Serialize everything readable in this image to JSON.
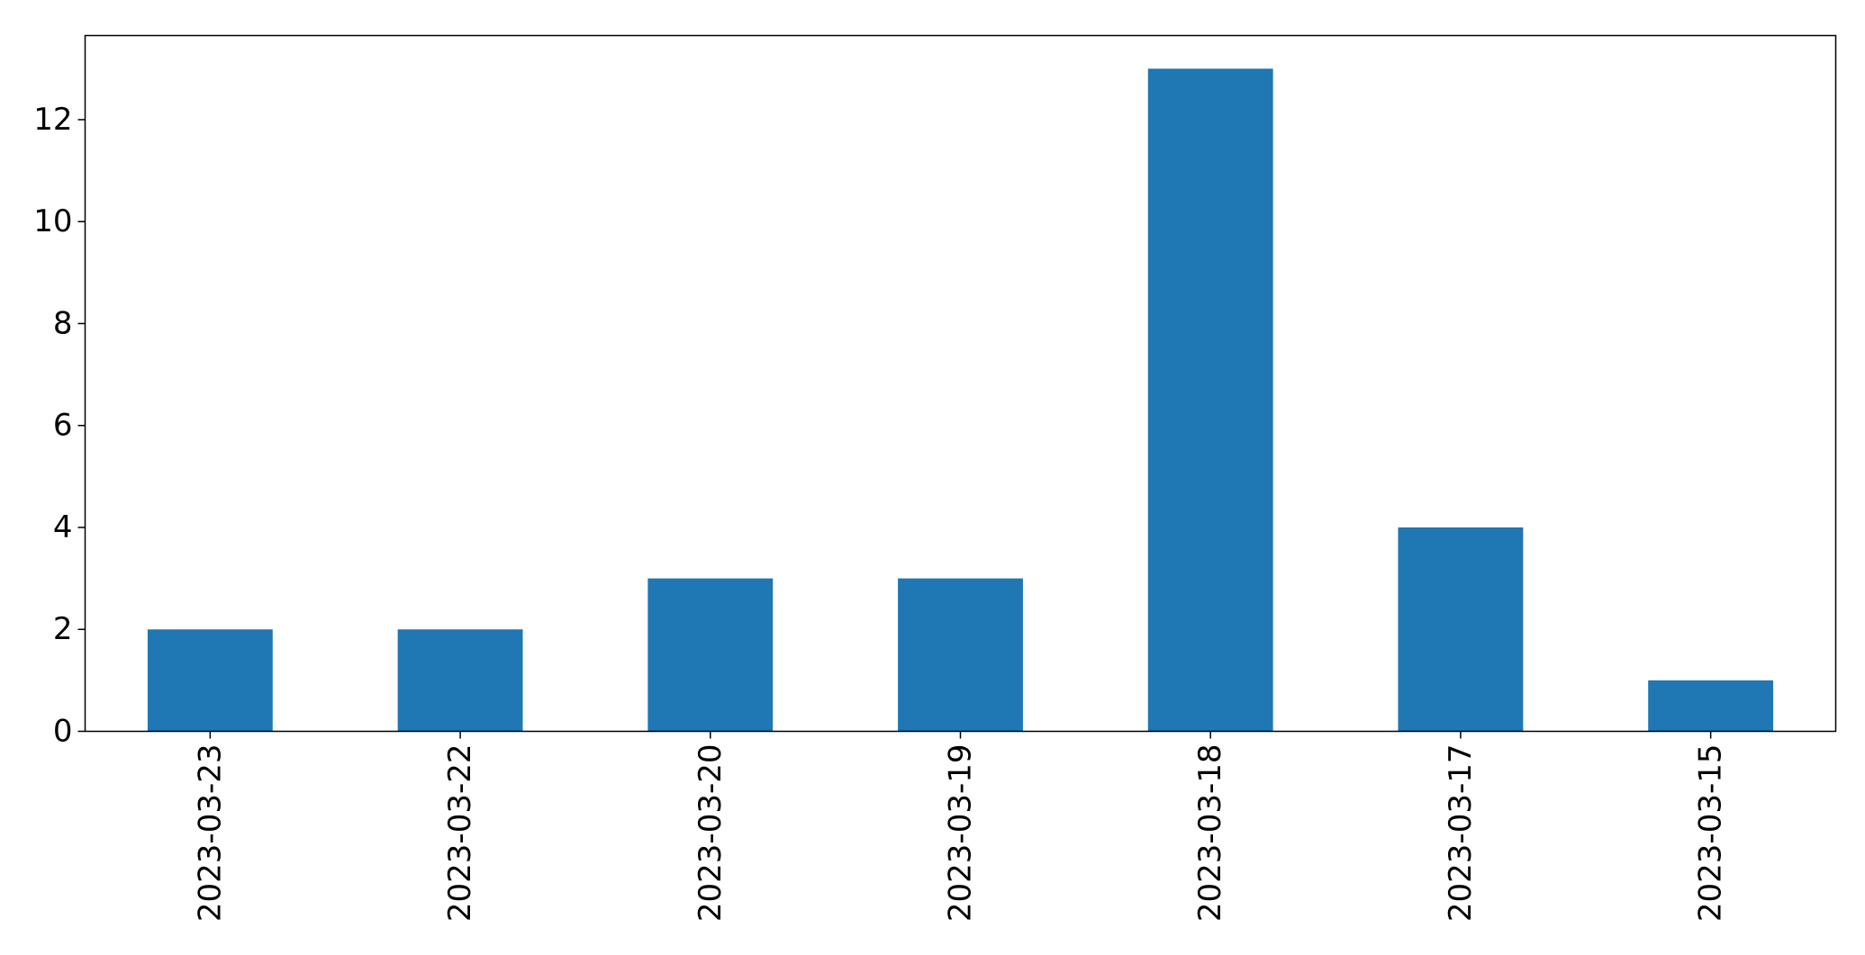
{
  "chart_data": {
    "type": "bar",
    "title": "",
    "xlabel": "",
    "ylabel": "",
    "categories": [
      "2023-03-23",
      "2023-03-22",
      "2023-03-20",
      "2023-03-19",
      "2023-03-18",
      "2023-03-17",
      "2023-03-15"
    ],
    "values": [
      2,
      2,
      3,
      3,
      13,
      4,
      1
    ],
    "ylim": [
      0,
      13.65
    ],
    "yticks": [
      0,
      2,
      4,
      6,
      8,
      10,
      12
    ],
    "grid": false,
    "legend": "none",
    "bar_color": "#1f77b4",
    "x_tick_rotation": "vertical"
  }
}
